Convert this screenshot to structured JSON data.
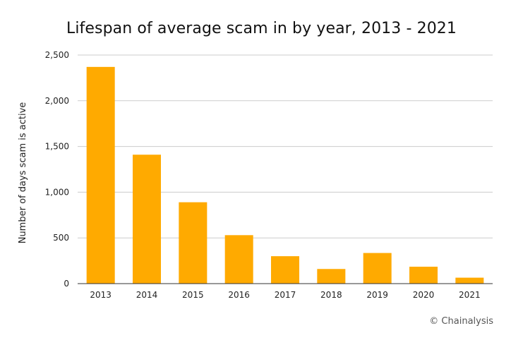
{
  "chart_data": {
    "type": "bar",
    "title": "Lifespan of average scam in by year, 2013 - 2021",
    "xlabel": "",
    "ylabel": "Number of days scam is active",
    "categories": [
      "2013",
      "2014",
      "2015",
      "2016",
      "2017",
      "2018",
      "2019",
      "2020",
      "2021"
    ],
    "values": [
      2370,
      1410,
      890,
      530,
      300,
      160,
      335,
      185,
      65
    ],
    "ylim": [
      0,
      2500
    ],
    "yticks": [
      0,
      500,
      1000,
      1500,
      2000,
      2500
    ],
    "ytick_labels": [
      "0",
      "500",
      "1,000",
      "1,500",
      "2,000",
      "2,500"
    ],
    "grid": true,
    "bar_color": "#FFAA00",
    "grid_color": "#cccccc",
    "credit": "© Chainalysis"
  }
}
